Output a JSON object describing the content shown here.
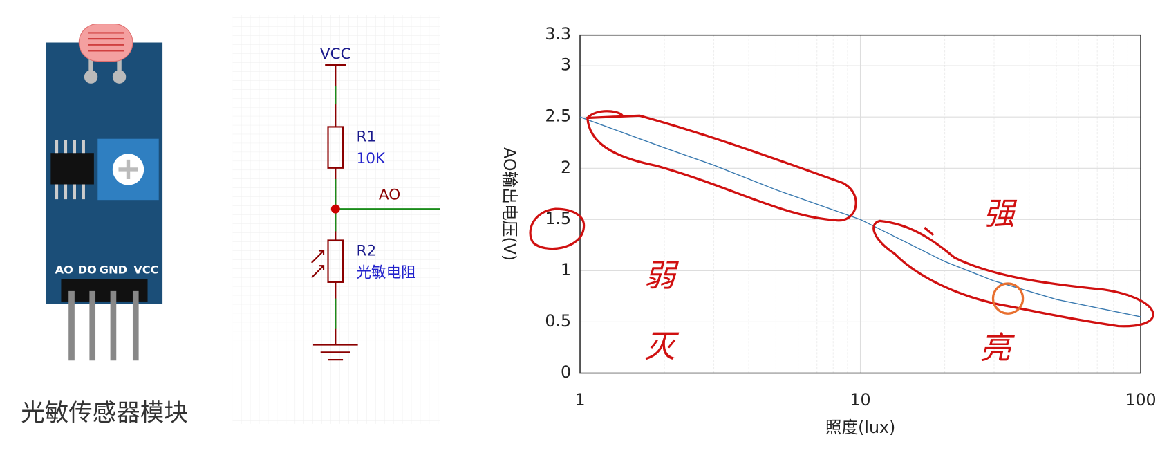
{
  "chart_data": {
    "type": "line",
    "xlabel": "照度(lux)",
    "ylabel": "AO输出电压(V)",
    "x": [
      1,
      2,
      3,
      5,
      10,
      20,
      30,
      50,
      100
    ],
    "values": [
      2.5,
      2.2,
      2.03,
      1.79,
      1.5,
      1.09,
      0.9,
      0.72,
      0.55
    ],
    "color": "#3a7ab0",
    "xscale": "log",
    "xlim": [
      1,
      100
    ],
    "xticks": [
      1,
      10,
      100
    ],
    "ylim": [
      0,
      3.3
    ],
    "yticks": [
      0,
      0.5,
      1,
      1.5,
      2,
      2.5,
      3,
      3.3
    ],
    "grid": true,
    "minor_grid": true,
    "annotations": [
      "弱",
      "灭",
      "强",
      "亮"
    ]
  },
  "module": {
    "pins": [
      "AO",
      "DO",
      "GND",
      "VCC"
    ],
    "caption": "光敏传感器模块"
  },
  "schematic": {
    "supply": "VCC",
    "r1": {
      "name": "R1",
      "value": "10K"
    },
    "node": "AO",
    "r2": {
      "name": "R2",
      "value": "光敏电阻"
    }
  }
}
